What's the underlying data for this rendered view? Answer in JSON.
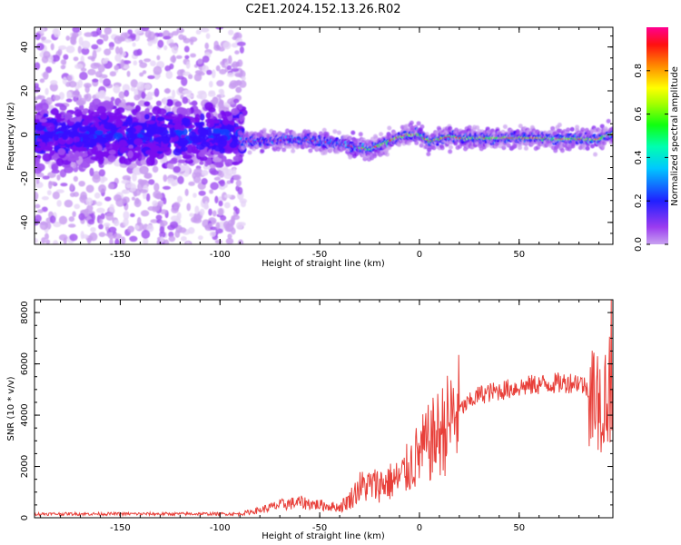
{
  "title": "C2E1.2024.152.13.26.R02",
  "chart_data": [
    {
      "type": "heatmap",
      "xlabel": "Height of straight line (km)",
      "ylabel": "Frequency (Hz)",
      "xlim": [
        -193,
        97
      ],
      "ylim": [
        -50,
        49
      ],
      "x_ticks": [
        -150,
        -100,
        -50,
        0,
        50
      ],
      "y_ticks": [
        -40,
        -20,
        0,
        20,
        40
      ],
      "colorbar": {
        "label": "Normalized spectral amplitude",
        "range": [
          0,
          1
        ],
        "ticks": [
          0.0,
          0.2,
          0.4,
          0.6,
          0.8
        ],
        "colormap": "rainbow (purple-blue-cyan-green-yellow-red)"
      },
      "ridge_frequency": {
        "x": [
          -90,
          -80,
          -70,
          -60,
          -50,
          -40,
          -30,
          -25,
          -20,
          -15,
          -10,
          -5,
          0,
          5,
          10,
          15,
          20,
          30,
          40,
          50,
          60,
          70,
          80,
          90,
          95
        ],
        "y": [
          -3,
          -3,
          -2.5,
          -2,
          -3,
          -4,
          -6,
          -6.5,
          -5,
          -3,
          -1,
          0,
          0,
          -3,
          -2,
          -1,
          -1.5,
          -1.5,
          -1.5,
          -1.5,
          -1.5,
          -2,
          -2,
          -2,
          0
        ]
      },
      "noise_region_x": [
        -193,
        -88
      ]
    },
    {
      "type": "line",
      "xlabel": "Height of straight line (km)",
      "ylabel": "SNR (10 * v/v)",
      "xlim": [
        -193,
        97
      ],
      "ylim": [
        0,
        8500
      ],
      "x_ticks": [
        -150,
        -100,
        -50,
        0,
        50
      ],
      "y_ticks": [
        0,
        2000,
        4000,
        6000,
        8000
      ],
      "line_color": "#e8403a",
      "envelope": {
        "x": [
          -193,
          -100,
          -90,
          -80,
          -70,
          -60,
          -50,
          -40,
          -35,
          -30,
          -20,
          -10,
          0,
          10,
          20,
          30,
          40,
          50,
          60,
          70,
          80,
          85,
          90,
          95
        ],
        "y": [
          150,
          150,
          150,
          300,
          500,
          600,
          500,
          400,
          700,
          1200,
          1300,
          1500,
          2500,
          3300,
          4200,
          4800,
          4950,
          5100,
          5200,
          5250,
          5300,
          5000,
          4500,
          5000
        ]
      }
    }
  ]
}
